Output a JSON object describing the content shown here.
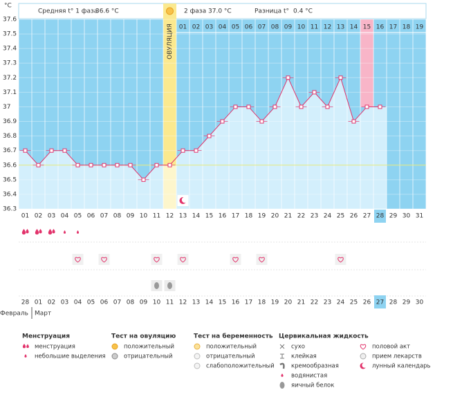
{
  "header": {
    "phase1_label": "Средняя t° 1 фаза",
    "phase1_value": "36.6 °C",
    "phase2_label": "2 фаза",
    "phase2_value": "37.0 °C",
    "diff_label": "Разница t°",
    "diff_value": "0.4 °C"
  },
  "chart_data": {
    "type": "line",
    "ylabel": "°C",
    "categories": [
      "01",
      "02",
      "03",
      "04",
      "05",
      "06",
      "07",
      "08",
      "09",
      "10",
      "11",
      "12",
      "13",
      "14",
      "15",
      "16",
      "17",
      "18",
      "19",
      "20",
      "21",
      "22",
      "23",
      "24",
      "25",
      "26",
      "27",
      "28",
      "29",
      "30",
      "31"
    ],
    "values": [
      36.7,
      36.6,
      36.7,
      36.7,
      36.6,
      36.6,
      36.6,
      36.6,
      36.6,
      36.5,
      36.6,
      36.6,
      36.7,
      36.7,
      36.8,
      36.9,
      37,
      37,
      36.9,
      37,
      37.2,
      37,
      37.1,
      37,
      37.2,
      36.9,
      37,
      37,
      null,
      null,
      null
    ],
    "color": "#e2336b",
    "ylim": [
      36.3,
      37.6
    ],
    "yticks": [
      36.3,
      36.4,
      36.5,
      36.6,
      36.7,
      36.8,
      36.9,
      37,
      37.1,
      37.2,
      37.3,
      37.4,
      37.5,
      37.6
    ],
    "cover_line": 36.6,
    "ovulation_label": "ОВУЛЯЦИЯ",
    "ovulation_day": "12",
    "phase2_days": [
      null,
      null,
      null,
      null,
      null,
      null,
      null,
      null,
      null,
      null,
      null,
      null,
      "01",
      "02",
      "03",
      "04",
      "05",
      "06",
      "07",
      "08",
      "09",
      "10",
      "11",
      "12",
      "13",
      "14",
      "15",
      "16",
      "17",
      "18",
      "19"
    ],
    "highlight_phase2_day": "15",
    "today": "28",
    "moon_day": "13"
  },
  "symbols": {
    "menstruation": [
      "heavy",
      "heavy",
      "heavy",
      "light",
      "light",
      null,
      null,
      null,
      null,
      null,
      null,
      null,
      null,
      null,
      null,
      null,
      null,
      null,
      null,
      null,
      null,
      null,
      null,
      null,
      null,
      null,
      null,
      null,
      null,
      null,
      null
    ],
    "intercourse": [
      null,
      null,
      null,
      null,
      "heart",
      null,
      "heart",
      null,
      null,
      null,
      "heart",
      null,
      "heart",
      null,
      null,
      null,
      "heart",
      null,
      "heart",
      null,
      null,
      null,
      null,
      null,
      "heart",
      null,
      null,
      null,
      null,
      null,
      null
    ],
    "cervical": [
      null,
      null,
      null,
      null,
      null,
      null,
      null,
      null,
      null,
      null,
      "egg_white",
      "egg_white",
      null,
      null,
      null,
      null,
      null,
      null,
      null,
      null,
      null,
      null,
      null,
      null,
      null,
      null,
      null,
      null,
      null,
      null,
      null
    ]
  },
  "calendar": {
    "dates": [
      "28",
      "01",
      "02",
      "03",
      "04",
      "05",
      "06",
      "07",
      "08",
      "09",
      "10",
      "11",
      "12",
      "13",
      "14",
      "15",
      "16",
      "17",
      "18",
      "19",
      "20",
      "21",
      "22",
      "23",
      "24",
      "25",
      "26",
      "27",
      "28",
      "29",
      "30"
    ],
    "weekend": [
      false,
      true,
      true,
      false,
      false,
      false,
      false,
      false,
      true,
      true,
      false,
      false,
      false,
      false,
      false,
      true,
      true,
      false,
      false,
      false,
      false,
      false,
      true,
      true,
      false,
      false,
      false,
      false,
      false,
      true,
      true
    ],
    "today_date": "27",
    "months": [
      "Февраль",
      "Март"
    ]
  },
  "legend": [
    {
      "title": "Менструация",
      "items": [
        "менструация",
        "небольшие выделения"
      ]
    },
    {
      "title": "Тест на овуляцию",
      "items": [
        "положительный",
        "отрицательный"
      ]
    },
    {
      "title": "Тест на беременность",
      "items": [
        "положительный",
        "отрицательный",
        "слабоположительный"
      ]
    },
    {
      "title": "Цервикальная жидкость",
      "items": [
        "сухо",
        "клейкая",
        "кремообразная",
        "водянистая",
        "яичный белок"
      ]
    },
    {
      "items": [
        "половой акт",
        "прием лекарств",
        "лунный календарь"
      ]
    }
  ]
}
